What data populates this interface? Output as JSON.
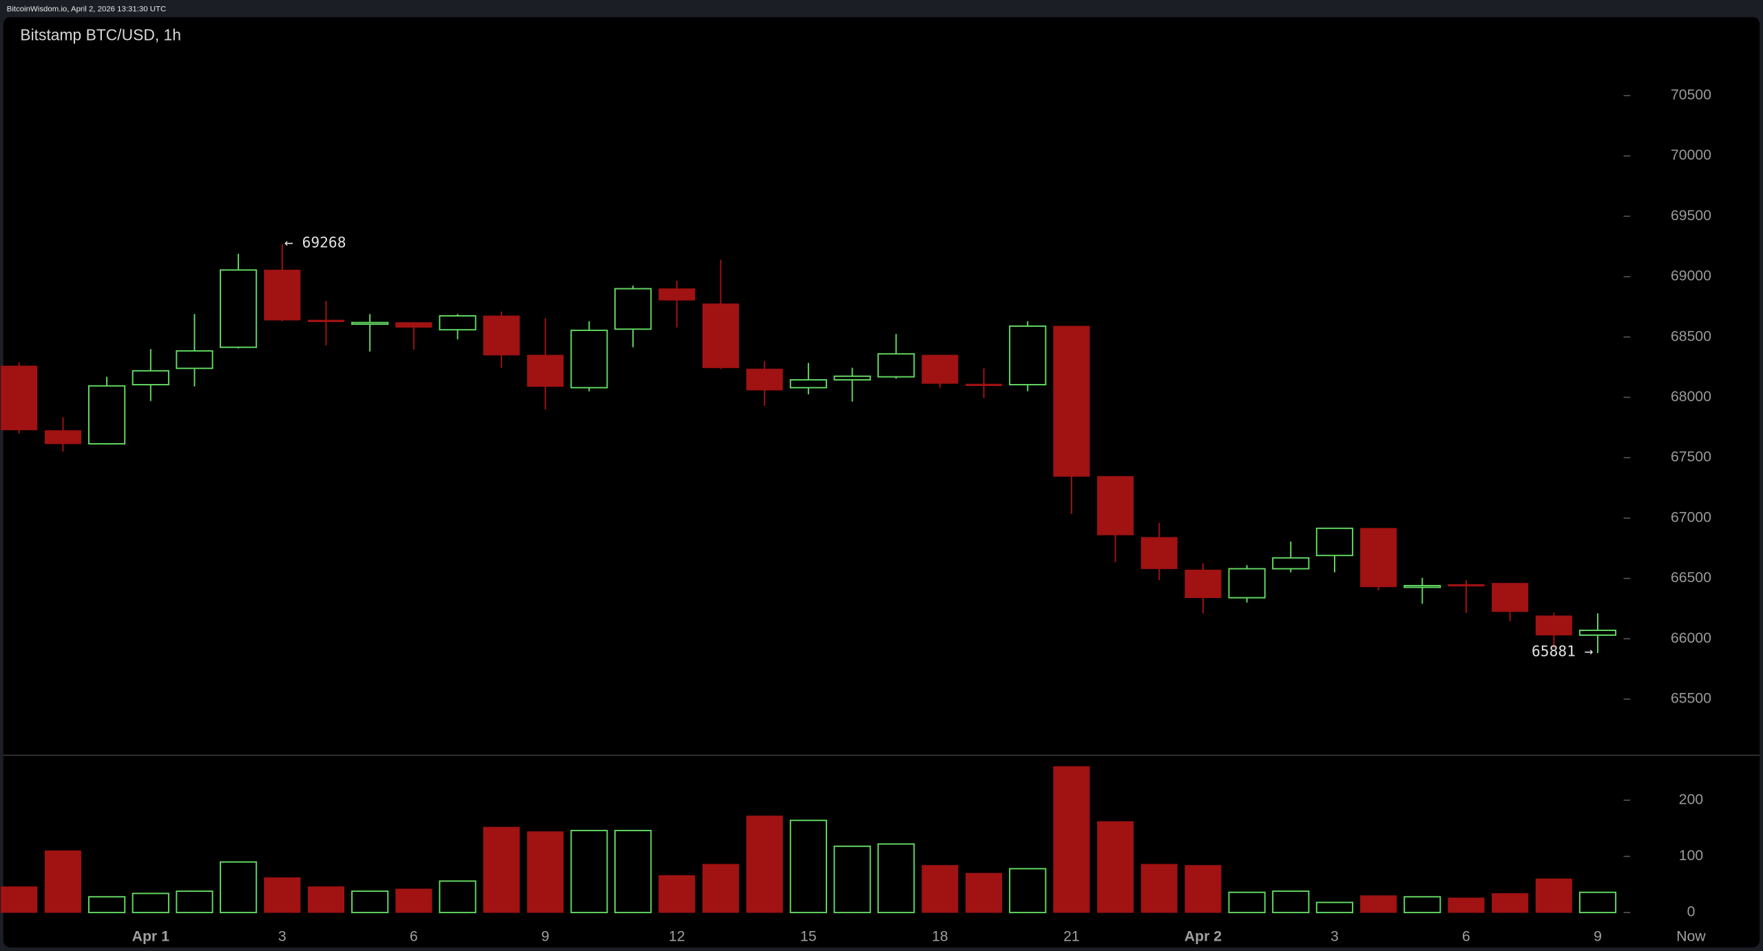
{
  "header": "BitcoinWisdom.io, April 2, 2026 13:31:30 UTC",
  "chart_data": {
    "type": "candlestick",
    "title": "Bitstamp BTC/USD, 1h",
    "categories": [
      null,
      null,
      null,
      "Apr 1",
      null,
      null,
      "3",
      null,
      null,
      "6",
      null,
      null,
      "9",
      null,
      null,
      "12",
      null,
      null,
      "15",
      null,
      null,
      "18",
      null,
      null,
      "21",
      null,
      null,
      "Apr 2",
      null,
      null,
      "3",
      null,
      null,
      "6",
      null,
      null,
      "9"
    ],
    "now_label": "Now",
    "open": [
      68260,
      67725,
      67615,
      68105,
      68240,
      68415,
      69055,
      68640,
      68610,
      68620,
      68560,
      68675,
      68350,
      68080,
      68565,
      68900,
      68775,
      68235,
      68080,
      68145,
      68170,
      68350,
      68110,
      68105,
      68590,
      67345,
      66840,
      66570,
      66340,
      66580,
      66690,
      66915,
      66430,
      66450,
      66460,
      66190,
      66030
    ],
    "high": [
      68290,
      67835,
      68170,
      68400,
      68690,
      69190,
      69268,
      68800,
      68690,
      68620,
      68690,
      68710,
      68655,
      68630,
      68925,
      68965,
      69140,
      68300,
      68285,
      68245,
      68525,
      68350,
      68240,
      68630,
      68590,
      67345,
      66960,
      66625,
      66610,
      66805,
      66915,
      66915,
      66505,
      66485,
      66460,
      66215,
      66210
    ],
    "low": [
      67700,
      67550,
      67610,
      67970,
      68090,
      68405,
      68630,
      68430,
      68380,
      68395,
      68480,
      68245,
      67900,
      68050,
      68415,
      68580,
      68235,
      67930,
      68025,
      67965,
      68155,
      68080,
      67995,
      68050,
      67035,
      66635,
      66485,
      66210,
      66300,
      66550,
      66550,
      66400,
      66290,
      66215,
      66145,
      65920,
      65881
    ],
    "close": [
      67730,
      67615,
      68095,
      68220,
      68385,
      69055,
      68640,
      68630,
      68620,
      68580,
      68675,
      68350,
      68090,
      68555,
      68900,
      68805,
      68245,
      68060,
      68145,
      68175,
      68360,
      68115,
      68105,
      68590,
      67345,
      66860,
      66580,
      66340,
      66580,
      66670,
      66915,
      66430,
      66440,
      66445,
      66225,
      66030,
      66070
    ],
    "volume": [
      46,
      110,
      28,
      34,
      38,
      90,
      62,
      46,
      38,
      42,
      56,
      152,
      144,
      146,
      146,
      66,
      86,
      172,
      164,
      118,
      122,
      84,
      70,
      78,
      260,
      162,
      86,
      84,
      36,
      38,
      18,
      30,
      28,
      26,
      34,
      60,
      36
    ],
    "up_color": "#62d962",
    "down_color": "#a11212",
    "ylim": [
      65035,
      71150
    ],
    "yticks": [
      65500,
      66000,
      66500,
      67000,
      67500,
      68000,
      68500,
      69000,
      69500,
      70000,
      70500
    ],
    "y2lim": [
      -20,
      280
    ],
    "y2ticks": [
      0,
      100,
      200
    ],
    "annotations": [
      "← 69268",
      "65881 →"
    ]
  }
}
